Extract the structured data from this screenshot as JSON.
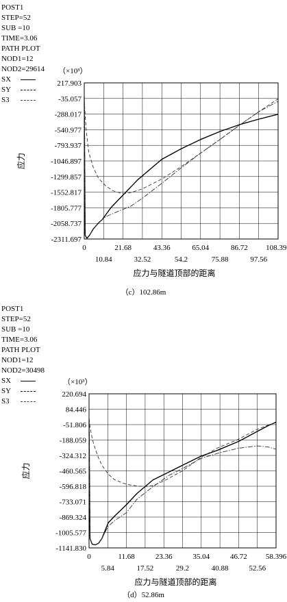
{
  "chart_data": [
    {
      "type": "line",
      "info": [
        "POST1",
        "STEP=52",
        "SUB =10",
        "TIME=3.06",
        "PATH PLOT",
        "NOD1=12",
        "NOD2=29614"
      ],
      "legend": [
        {
          "name": "SX",
          "style": "solid"
        },
        {
          "name": "SY",
          "style": "dashed"
        },
        {
          "name": "S3",
          "style": "dashdot"
        }
      ],
      "y_multiplier": "（×10³）",
      "ylabel": "应力",
      "xlabel": "应力与隧道顶部的距离",
      "caption": "（c）102.86m",
      "yticks": [
        "217.903",
        "-35.057",
        "-288.017",
        "-540.977",
        "-793.937",
        "-1046.897",
        "-1299.857",
        "-1552.817",
        "-1805.777",
        "-2058.737",
        "-2311.697"
      ],
      "ytick_values": [
        217.903,
        -35.057,
        -288.017,
        -540.977,
        -793.937,
        -1046.897,
        -1299.857,
        -1552.817,
        -1805.777,
        -2058.737,
        -2311.697
      ],
      "xticks_upper": [
        "0",
        "21.68",
        "43.36",
        "65.04",
        "86.72",
        "108.396"
      ],
      "xticks_upper_values": [
        0,
        21.68,
        43.36,
        65.04,
        86.72,
        108.396
      ],
      "xticks_lower": [
        "10.84",
        "32.52",
        "54.2",
        "75.88",
        "97.56"
      ],
      "xticks_lower_values": [
        10.84,
        32.52,
        54.2,
        75.88,
        97.56
      ],
      "xlim": [
        0,
        108.396
      ],
      "ylim": [
        -2311.697,
        217.903
      ],
      "grid": true,
      "series": [
        {
          "name": "SX",
          "x": [
            0,
            0.5,
            1.5,
            3,
            5,
            8,
            10,
            15,
            20,
            30,
            43.36,
            54.2,
            65.04,
            75.88,
            86.72,
            97.56,
            108.396
          ],
          "y": [
            0,
            -2250,
            -2300,
            -2250,
            -2150,
            -2050,
            -2000,
            -1800,
            -1650,
            -1350,
            -1020,
            -850,
            -700,
            -570,
            -460,
            -370,
            -290
          ]
        },
        {
          "name": "SY",
          "x": [
            0,
            1,
            2.5,
            5,
            8,
            12,
            16,
            21.68,
            26,
            32.52,
            43.36,
            54.2,
            65.04,
            75.88,
            86.72,
            97.56,
            108.396
          ],
          "y": [
            -60,
            -520,
            -900,
            -1150,
            -1330,
            -1450,
            -1530,
            -1580,
            -1560,
            -1500,
            -1340,
            -1140,
            -920,
            -700,
            -470,
            -250,
            -40
          ]
        },
        {
          "name": "S3",
          "x": [
            0,
            0.5,
            1.5,
            3,
            5,
            8,
            12,
            20,
            26,
            32.52,
            43.36,
            54.2,
            65.04,
            75.88,
            86.72,
            97.56,
            108.396
          ],
          "y": [
            0,
            -2250,
            -2290,
            -2250,
            -2150,
            -2050,
            -1950,
            -1850,
            -1780,
            -1650,
            -1410,
            -1160,
            -920,
            -700,
            -470,
            -250,
            -80
          ]
        }
      ]
    },
    {
      "type": "line",
      "info": [
        "POST1",
        "STEP=52",
        "SUB =10",
        "TIME=3.06",
        "PATH PLOT",
        "NOD1=12",
        "NOD2=30498"
      ],
      "legend": [
        {
          "name": "SX",
          "style": "solid"
        },
        {
          "name": "SY",
          "style": "dashed"
        },
        {
          "name": "S3",
          "style": "dashdot"
        }
      ],
      "y_multiplier": "（×10³）",
      "ylabel": "应力",
      "xlabel": "应力与隧道顶部的距离",
      "caption": "（d）52.86m",
      "yticks": [
        "220.694",
        "84.446",
        "-51.806",
        "-188.059",
        "-324.312",
        "-460.565",
        "-596.818",
        "-733.071",
        "-869.324",
        "-1005.577",
        "-1141.830"
      ],
      "ytick_values": [
        220.694,
        84.446,
        -51.806,
        -188.059,
        -324.312,
        -460.565,
        -596.818,
        -733.071,
        -869.324,
        -1005.577,
        -1141.83
      ],
      "xticks_upper": [
        "0",
        "11.68",
        "23.36",
        "35.04",
        "46.72",
        "58.396"
      ],
      "xticks_upper_values": [
        0,
        11.68,
        23.36,
        35.04,
        46.72,
        58.396
      ],
      "xticks_lower": [
        "5.84",
        "17.52",
        "29.2",
        "40.88",
        "52.56"
      ],
      "xticks_lower_values": [
        5.84,
        17.52,
        29.2,
        40.88,
        52.56
      ],
      "xlim": [
        0,
        58.396
      ],
      "ylim": [
        -1141.83,
        220.694
      ],
      "grid": true,
      "series": [
        {
          "name": "SX",
          "x": [
            0,
            0.3,
            1,
            2,
            3,
            4,
            6,
            8,
            11.68,
            15,
            20,
            25,
            30,
            35.04,
            40,
            46.72,
            52,
            56,
            58.396
          ],
          "y": [
            0,
            -1060,
            -1110,
            -1115,
            -1100,
            -1060,
            -920,
            -860,
            -760,
            -660,
            -540,
            -470,
            -400,
            -330,
            -280,
            -200,
            -120,
            -60,
            -30
          ]
        },
        {
          "name": "SY",
          "x": [
            0,
            0.3,
            1,
            2,
            3,
            4,
            6,
            8,
            11.68,
            15,
            17.52,
            20,
            23.36,
            29.2,
            35.04,
            40,
            46.72,
            52,
            56,
            58.396
          ],
          "y": [
            0,
            -70,
            -180,
            -270,
            -350,
            -410,
            -490,
            -540,
            -580,
            -595,
            -600,
            -590,
            -550,
            -460,
            -340,
            -260,
            -180,
            -100,
            -55,
            -35
          ]
        },
        {
          "name": "S3",
          "x": [
            0,
            0.3,
            1,
            2,
            3,
            4,
            6,
            8,
            11.68,
            15,
            20,
            25,
            29.2,
            35.04,
            40.88,
            46.72,
            52.56,
            56,
            58.396
          ],
          "y": [
            0,
            -1060,
            -1110,
            -1115,
            -1100,
            -1060,
            -950,
            -900,
            -830,
            -710,
            -600,
            -500,
            -440,
            -350,
            -300,
            -260,
            -240,
            -250,
            -270
          ]
        }
      ]
    }
  ]
}
